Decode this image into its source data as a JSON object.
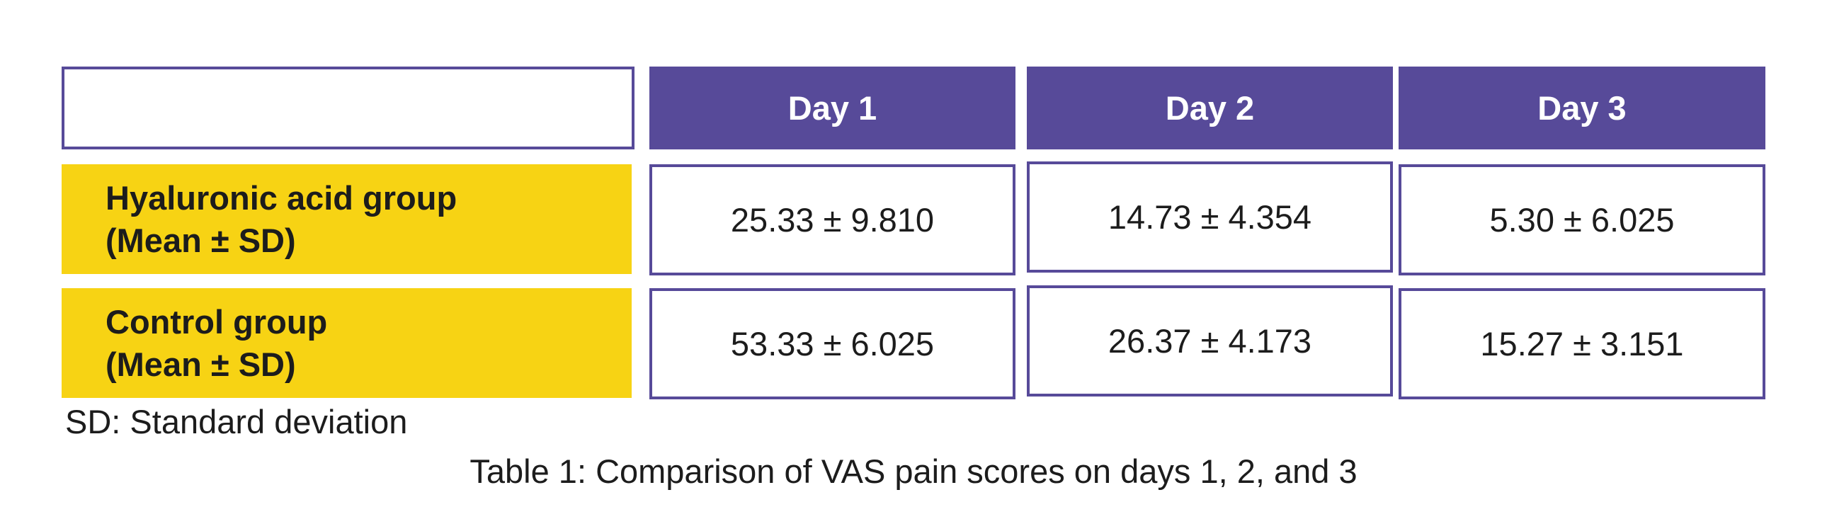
{
  "table": {
    "headers": [
      "Day 1",
      "Day 2",
      "Day 3"
    ],
    "rows": [
      {
        "label_line1": "Hyaluronic acid group",
        "label_line2": "(Mean ± SD)",
        "values": [
          "25.33 ± 9.810",
          "14.73 ± 4.354",
          "5.30 ± 6.025"
        ]
      },
      {
        "label_line1": "Control group",
        "label_line2": "(Mean ± SD)",
        "values": [
          "53.33 ± 6.025",
          "26.37 ± 4.173",
          "15.27 ± 3.151"
        ]
      }
    ]
  },
  "footnote": "SD: Standard deviation",
  "caption": "Table 1: Comparison of VAS pain scores on days 1, 2, and 3",
  "colors": {
    "header_bg": "#574a99",
    "label_bg": "#f7d314",
    "border": "#574a99"
  }
}
